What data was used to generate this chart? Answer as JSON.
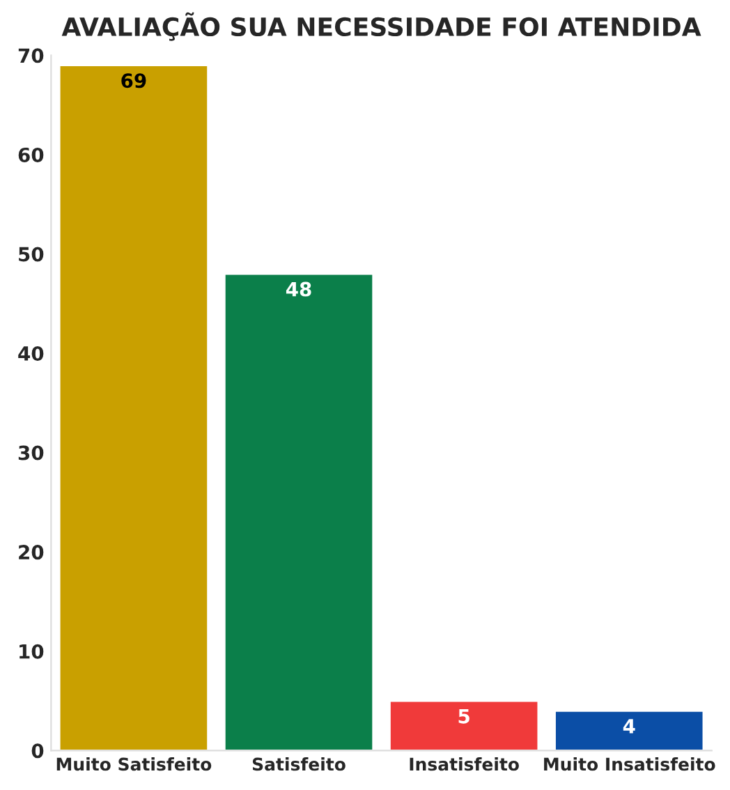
{
  "chart_data": {
    "type": "bar",
    "title": "AVALIAÇÃO SUA NECESSIDADE FOI ATENDIDA",
    "categories": [
      "Muito Satisfeito",
      "Satisfeito",
      "Insatisfeito",
      "Muito Insatisfeito"
    ],
    "values": [
      69,
      48,
      5,
      4
    ],
    "colors": [
      "#c9a000",
      "#0b7f4a",
      "#f03a3a",
      "#0b4ea6"
    ],
    "ylim": [
      0,
      70
    ],
    "yticks": [
      0,
      10,
      20,
      30,
      40,
      50,
      60,
      70
    ],
    "data_labels": true,
    "grid": false
  }
}
